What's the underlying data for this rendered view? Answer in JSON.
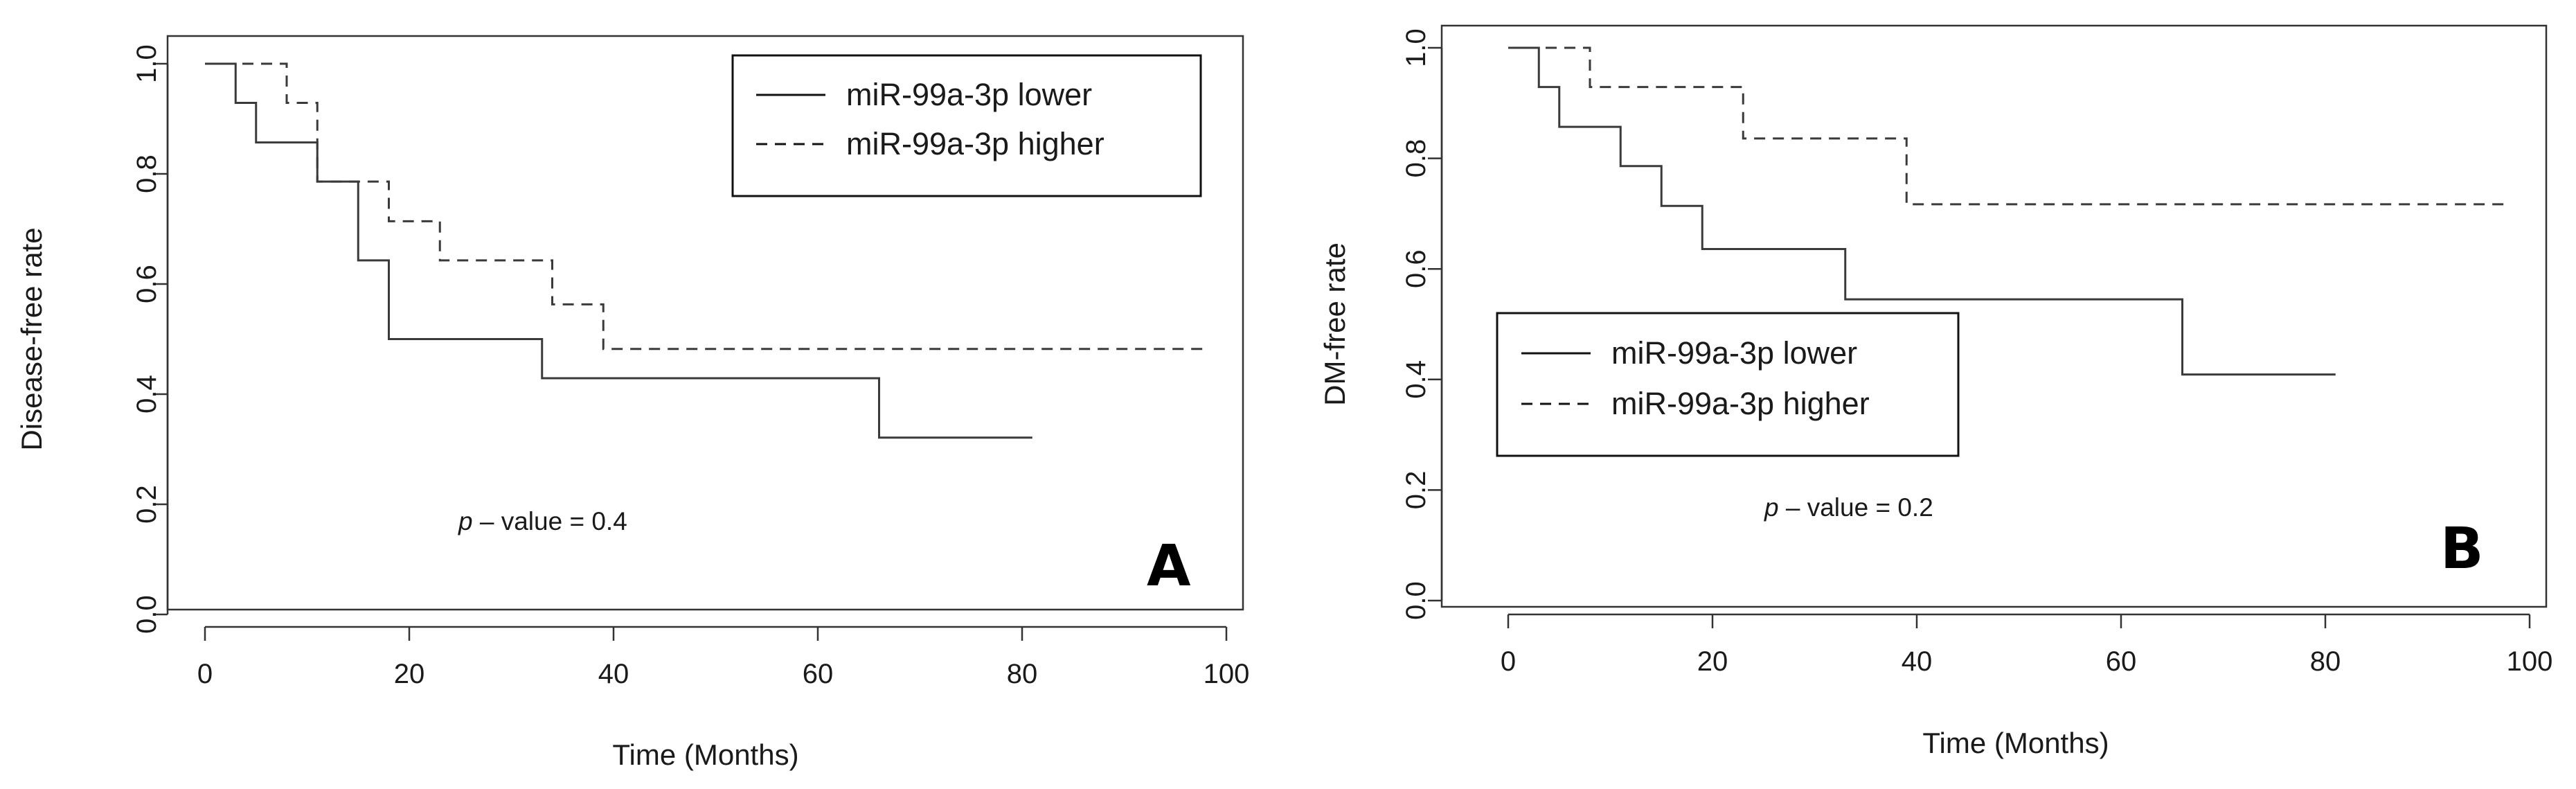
{
  "chart_data": [
    {
      "type": "line",
      "panel_label": "A",
      "xlabel": "Time (Months)",
      "ylabel": "Disease-free rate",
      "xlim": [
        0,
        100
      ],
      "ylim": [
        0,
        1
      ],
      "x_ticks": [
        "0",
        "20",
        "40",
        "60",
        "80",
        "100"
      ],
      "y_ticks": [
        "0.0",
        "0.2",
        "0.4",
        "0.6",
        "0.8",
        "1.0"
      ],
      "legend_position": "top-right",
      "annotation": {
        "p": "p",
        "rest": " – value = 0.4"
      },
      "series": [
        {
          "name": "miR-99a-3p lower",
          "style": "solid",
          "x": [
            0,
            3,
            5,
            11,
            15,
            18,
            33,
            66,
            81
          ],
          "y": [
            1.0,
            0.929,
            0.857,
            0.786,
            0.643,
            0.5,
            0.429,
            0.321,
            0.321
          ]
        },
        {
          "name": "miR-99a-3p higher",
          "style": "dashed",
          "x": [
            0,
            8,
            11,
            17,
            18,
            23,
            34,
            39,
            98
          ],
          "y": [
            1.0,
            0.929,
            0.786,
            0.786,
            0.714,
            0.643,
            0.563,
            0.482,
            0.482
          ]
        }
      ]
    },
    {
      "type": "line",
      "panel_label": "B",
      "xlabel": "Time (Months)",
      "ylabel": "DM-free rate",
      "xlim": [
        0,
        100
      ],
      "ylim": [
        0,
        1
      ],
      "x_ticks": [
        "0",
        "20",
        "40",
        "60",
        "80",
        "100"
      ],
      "y_ticks": [
        "0.0",
        "0.2",
        "0.4",
        "0.6",
        "0.8",
        "1.0"
      ],
      "legend_position": "middle-left",
      "annotation": {
        "p": "p",
        "rest": " – value = 0.2"
      },
      "series": [
        {
          "name": "miR-99a-3p lower",
          "style": "solid",
          "x": [
            0,
            3,
            5,
            11,
            15,
            19,
            33,
            66,
            81
          ],
          "y": [
            1.0,
            0.929,
            0.857,
            0.786,
            0.714,
            0.636,
            0.545,
            0.409,
            0.409
          ]
        },
        {
          "name": "miR-99a-3p higher",
          "style": "dashed",
          "x": [
            0,
            8,
            23,
            39,
            98
          ],
          "y": [
            1.0,
            0.929,
            0.836,
            0.717,
            0.717
          ]
        }
      ]
    }
  ]
}
